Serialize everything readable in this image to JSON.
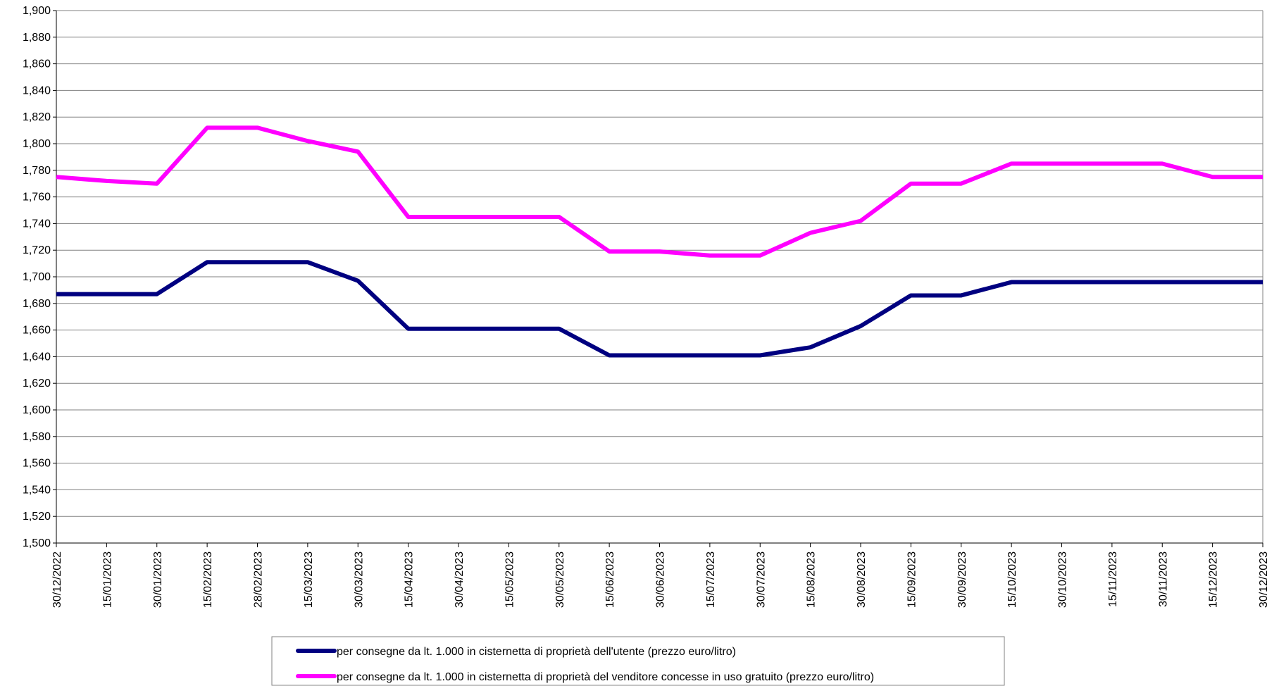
{
  "chart_data": {
    "type": "line",
    "categories": [
      "30/12/2022",
      "15/01/2023",
      "30/01/2023",
      "15/02/2023",
      "28/02/2023",
      "15/03/2023",
      "30/03/2023",
      "15/04/2023",
      "30/04/2023",
      "15/05/2023",
      "30/05/2023",
      "15/06/2023",
      "30/06/2023",
      "15/07/2023",
      "30/07/2023",
      "15/08/2023",
      "30/08/2023",
      "15/09/2023",
      "30/09/2023",
      "15/10/2023",
      "30/10/2023",
      "15/11/2023",
      "30/11/2023",
      "15/12/2023",
      "30/12/2023"
    ],
    "series": [
      {
        "name": "per consegne da lt. 1.000 in cisternetta di proprietà dell'utente (prezzo euro/litro)",
        "color": "#000080",
        "values": [
          1.687,
          1.687,
          1.687,
          1.711,
          1.711,
          1.711,
          1.697,
          1.661,
          1.661,
          1.661,
          1.661,
          1.641,
          1.641,
          1.641,
          1.641,
          1.647,
          1.663,
          1.686,
          1.686,
          1.696,
          1.696,
          1.696,
          1.696,
          1.696,
          1.696
        ]
      },
      {
        "name": "per consegne da lt. 1.000 in cisternetta di proprietà del venditore concesse in uso gratuito (prezzo euro/litro)",
        "color": "#ff00ff",
        "values": [
          1.775,
          1.772,
          1.77,
          1.812,
          1.812,
          1.802,
          1.794,
          1.745,
          1.745,
          1.745,
          1.745,
          1.719,
          1.719,
          1.716,
          1.716,
          1.733,
          1.742,
          1.77,
          1.77,
          1.785,
          1.785,
          1.785,
          1.785,
          1.775,
          1.775
        ]
      }
    ],
    "ylim": [
      1.5,
      1.9
    ],
    "yticks": [
      {
        "value": 1.5,
        "label": "1,500"
      },
      {
        "value": 1.52,
        "label": "1,520"
      },
      {
        "value": 1.54,
        "label": "1,540"
      },
      {
        "value": 1.56,
        "label": "1,560"
      },
      {
        "value": 1.58,
        "label": "1,580"
      },
      {
        "value": 1.6,
        "label": "1,600"
      },
      {
        "value": 1.62,
        "label": "1,620"
      },
      {
        "value": 1.64,
        "label": "1,640"
      },
      {
        "value": 1.66,
        "label": "1,660"
      },
      {
        "value": 1.68,
        "label": "1,680"
      },
      {
        "value": 1.7,
        "label": "1,700"
      },
      {
        "value": 1.72,
        "label": "1,720"
      },
      {
        "value": 1.74,
        "label": "1,740"
      },
      {
        "value": 1.76,
        "label": "1,760"
      },
      {
        "value": 1.78,
        "label": "1,780"
      },
      {
        "value": 1.8,
        "label": "1,800"
      },
      {
        "value": 1.82,
        "label": "1,820"
      },
      {
        "value": 1.84,
        "label": "1,840"
      },
      {
        "value": 1.86,
        "label": "1,860"
      },
      {
        "value": 1.88,
        "label": "1,880"
      },
      {
        "value": 1.9,
        "label": "1,900"
      }
    ],
    "grid": true,
    "legend": "bottom"
  }
}
